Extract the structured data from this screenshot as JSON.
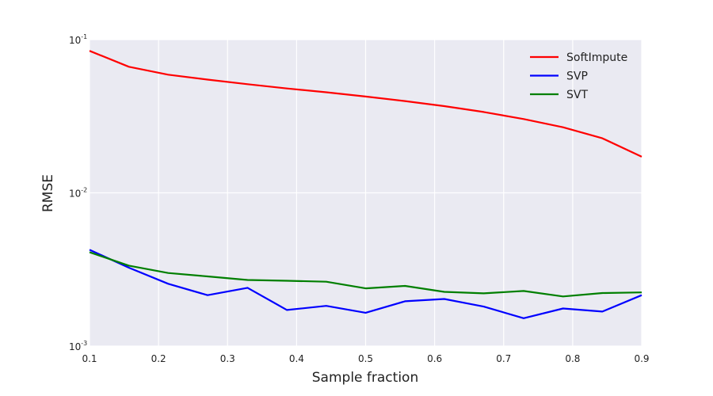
{
  "chart_data": {
    "type": "line",
    "xlabel": "Sample fraction",
    "ylabel": "RMSE",
    "xlim": [
      0.1,
      0.9
    ],
    "xticks": [
      0.1,
      0.2,
      0.3,
      0.4,
      0.5,
      0.6,
      0.7,
      0.8,
      0.9
    ],
    "xtick_labels": [
      "0.1",
      "0.2",
      "0.3",
      "0.4",
      "0.5",
      "0.6",
      "0.7",
      "0.8",
      "0.9"
    ],
    "yscale": "log",
    "ylim": [
      0.001,
      0.1
    ],
    "yticks": [
      {
        "value": 0.1,
        "base": "10",
        "exp": "-1"
      },
      {
        "value": 0.01,
        "base": "10",
        "exp": "-2"
      },
      {
        "value": 0.001,
        "base": "10",
        "exp": "-3"
      }
    ],
    "grid": true,
    "legend_position": "top-right",
    "x": [
      0.1,
      0.157,
      0.214,
      0.271,
      0.329,
      0.386,
      0.443,
      0.5,
      0.557,
      0.614,
      0.671,
      0.729,
      0.786,
      0.843,
      0.9
    ],
    "series": [
      {
        "name": "SoftImpute",
        "color": "#ff0000",
        "values": [
          0.0845,
          0.0665,
          0.059,
          0.0548,
          0.0512,
          0.048,
          0.0453,
          0.0425,
          0.0397,
          0.0368,
          0.0337,
          0.0303,
          0.0268,
          0.0227,
          0.0172
        ]
      },
      {
        "name": "SVP",
        "color": "#0000ff",
        "values": [
          0.00425,
          0.00325,
          0.00255,
          0.00215,
          0.0024,
          0.00172,
          0.00183,
          0.00165,
          0.00196,
          0.00203,
          0.00181,
          0.00152,
          0.00176,
          0.00168,
          0.00215
        ]
      },
      {
        "name": "SVT",
        "color": "#007f00",
        "values": [
          0.0041,
          0.00335,
          0.003,
          0.00285,
          0.0027,
          0.00267,
          0.00263,
          0.00238,
          0.00247,
          0.00226,
          0.00221,
          0.00229,
          0.00211,
          0.00222,
          0.00224
        ]
      }
    ]
  }
}
